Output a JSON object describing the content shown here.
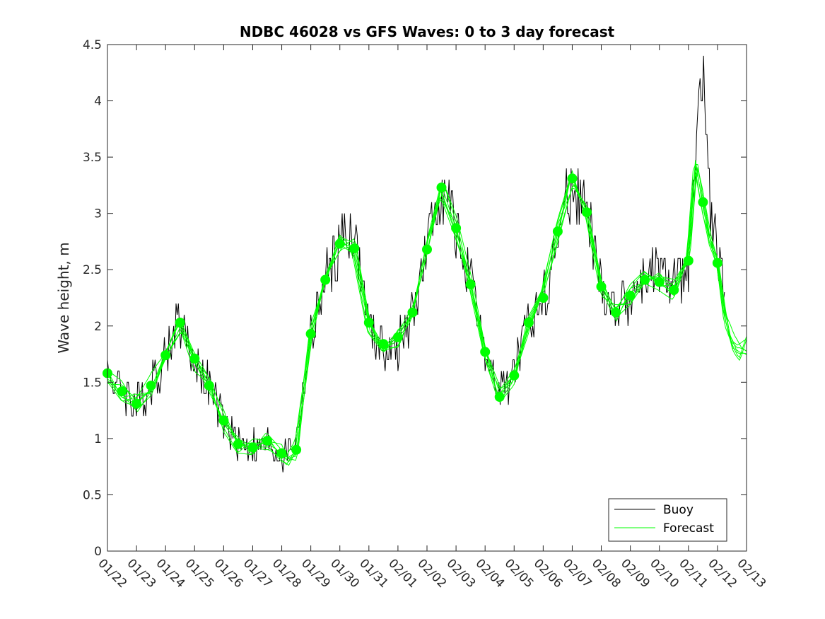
{
  "chart_data": {
    "type": "line",
    "title": "NDBC 46028 vs GFS Waves: 0 to 3 day forecast",
    "xlabel": "",
    "ylabel": "Wave height, m",
    "ylim": [
      0,
      4.5
    ],
    "xlim": [
      0,
      22
    ],
    "yticks": [
      "0",
      "0.5",
      "1",
      "1.5",
      "2",
      "2.5",
      "3",
      "3.5",
      "4",
      "4.5"
    ],
    "xtick_labels": [
      "01/22",
      "01/23",
      "01/24",
      "01/25",
      "01/26",
      "01/27",
      "01/28",
      "01/29",
      "01/30",
      "01/31",
      "02/01",
      "02/02",
      "02/03",
      "02/04",
      "02/05",
      "02/06",
      "02/07",
      "02/08",
      "02/09",
      "02/10",
      "02/11",
      "02/12",
      "02/13"
    ],
    "grid": false,
    "legend": {
      "position": "bottom-right",
      "entries": [
        {
          "name": "Buoy",
          "color": "#000000"
        },
        {
          "name": "Forecast",
          "color": "#00ff00"
        }
      ]
    },
    "series": [
      {
        "name": "Buoy",
        "color": "#000000",
        "x": [
          0,
          0.5,
          1,
          1.5,
          2,
          2.5,
          3,
          3.5,
          4,
          4.5,
          5,
          5.5,
          6,
          6.5,
          7,
          7.5,
          8,
          8.5,
          9,
          9.5,
          10,
          10.5,
          11,
          11.5,
          12,
          12.5,
          13,
          13.5,
          14,
          14.5,
          15,
          15.5,
          16,
          16.5,
          17,
          17.5,
          18,
          18.5,
          19,
          19.5,
          20,
          20.25,
          20.5,
          20.75,
          21,
          21.25,
          21.5,
          21.75,
          22
        ],
        "values": [
          1.6,
          1.45,
          1.3,
          1.45,
          1.75,
          2.05,
          1.7,
          1.45,
          1.15,
          0.95,
          0.95,
          0.95,
          0.85,
          1.0,
          1.9,
          2.4,
          2.75,
          2.85,
          2.0,
          1.8,
          1.8,
          2.1,
          2.7,
          3.25,
          2.85,
          2.35,
          1.75,
          1.4,
          1.6,
          2.05,
          2.25,
          2.8,
          3.3,
          3.0,
          2.35,
          2.15,
          2.3,
          2.4,
          2.45,
          2.4,
          2.5,
          3.4,
          4.3,
          3.0,
          2.6,
          2.2,
          null,
          null,
          null
        ]
      },
      {
        "name": "Forecast",
        "color": "#00ff00",
        "x": [
          0,
          0.5,
          1,
          1.5,
          2,
          2.5,
          3,
          3.5,
          4,
          4.5,
          5,
          5.5,
          6,
          6.2,
          6.5,
          7,
          7.5,
          8,
          8.5,
          9,
          9.5,
          10,
          10.5,
          11,
          11.5,
          12,
          12.5,
          13,
          13.5,
          14,
          14.5,
          15,
          15.5,
          16,
          16.5,
          17,
          17.5,
          18,
          18.5,
          19,
          19.5,
          20,
          20.25,
          20.5,
          20.75,
          21,
          21.25,
          21.5,
          21.75,
          22
        ],
        "values": [
          1.58,
          1.42,
          1.31,
          1.48,
          1.74,
          2.03,
          1.71,
          1.47,
          1.16,
          0.95,
          0.92,
          0.98,
          0.87,
          0.78,
          0.9,
          1.93,
          2.41,
          2.73,
          2.69,
          2.03,
          1.84,
          1.9,
          2.12,
          2.68,
          3.23,
          2.87,
          2.37,
          1.77,
          1.37,
          1.56,
          2.03,
          2.25,
          2.84,
          3.31,
          3.01,
          2.35,
          2.12,
          2.27,
          2.41,
          2.39,
          2.32,
          2.58,
          3.45,
          3.1,
          2.75,
          2.56,
          2.1,
          1.85,
          1.75,
          1.82
        ]
      },
      {
        "name": "Forecast markers",
        "color": "#00ff00",
        "x": [
          0,
          0.5,
          1,
          1.5,
          2,
          2.5,
          3,
          3.5,
          4,
          4.5,
          5,
          5.5,
          6,
          6.5,
          7,
          7.5,
          8,
          8.5,
          9,
          9.5,
          10,
          10.5,
          11,
          11.5,
          12,
          12.5,
          13,
          13.5,
          14,
          14.5,
          15,
          15.5,
          16,
          16.5,
          17,
          17.5,
          18,
          18.5,
          19,
          19.5,
          20,
          20.5,
          21
        ],
        "values": [
          1.58,
          1.42,
          1.31,
          1.47,
          1.74,
          2.03,
          1.71,
          1.47,
          1.16,
          0.95,
          0.92,
          0.98,
          0.87,
          0.9,
          1.93,
          2.41,
          2.73,
          2.69,
          2.03,
          1.84,
          1.9,
          2.12,
          2.68,
          3.23,
          2.87,
          2.37,
          1.77,
          1.37,
          1.56,
          2.03,
          2.25,
          2.84,
          3.31,
          3.01,
          2.35,
          2.12,
          2.27,
          2.41,
          2.39,
          2.32,
          2.58,
          3.1,
          2.56
        ]
      }
    ]
  }
}
